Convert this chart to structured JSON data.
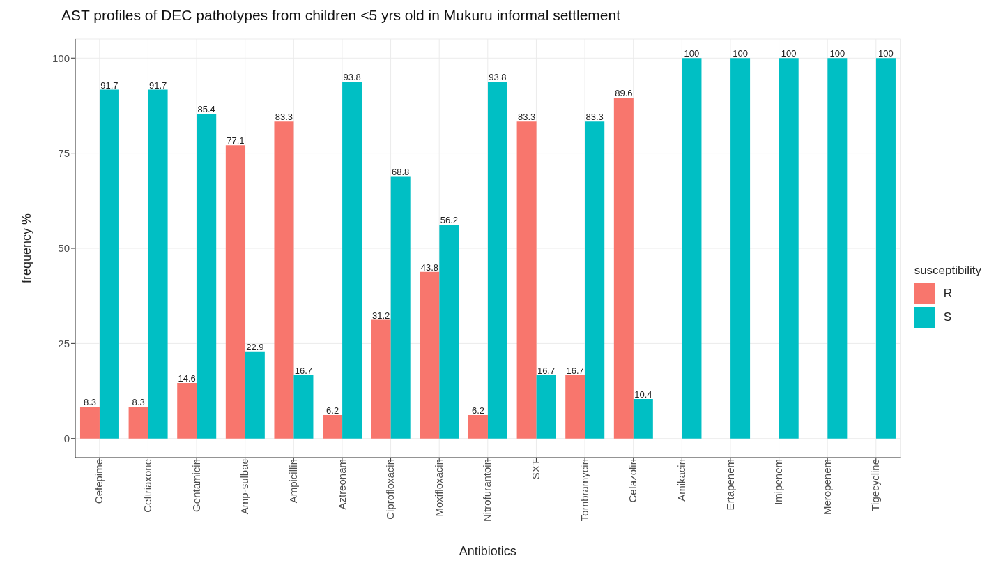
{
  "chart_data": {
    "type": "bar",
    "title": "AST profiles of DEC pathotypes from children <5 yrs old in Mukuru informal settlement",
    "xlabel": "Antibiotics",
    "ylabel": "frequency %",
    "legend_title": "susceptibility",
    "categories": [
      "Cefepime",
      "Ceftriaxone",
      "Gentamicin",
      "Amp-sulbac",
      "Ampicillin",
      "Aztreonam",
      "Ciprofloxacin",
      "Moxifloxacin",
      "Nitrofurantoin",
      "SXT",
      "Tombramycin",
      "Cefazolin",
      "Amikacin",
      "Ertapenem",
      "Imipenem",
      "Meropenem",
      "Tigecycline"
    ],
    "series": [
      {
        "name": "R",
        "color": "#f8766d",
        "values": [
          8.3,
          8.3,
          14.6,
          77.1,
          83.3,
          6.2,
          31.2,
          43.8,
          6.2,
          83.3,
          16.7,
          89.6,
          null,
          null,
          null,
          null,
          null
        ]
      },
      {
        "name": "S",
        "color": "#00bfc4",
        "values": [
          91.7,
          91.7,
          85.4,
          22.9,
          16.7,
          93.8,
          68.8,
          56.2,
          93.8,
          16.7,
          83.3,
          10.4,
          100,
          100,
          100,
          100,
          100
        ]
      }
    ],
    "ylim": [
      -5,
      105
    ],
    "yticks": [
      0,
      25,
      50,
      75,
      100
    ],
    "grid": true,
    "legend": "right",
    "data_labels": true
  }
}
